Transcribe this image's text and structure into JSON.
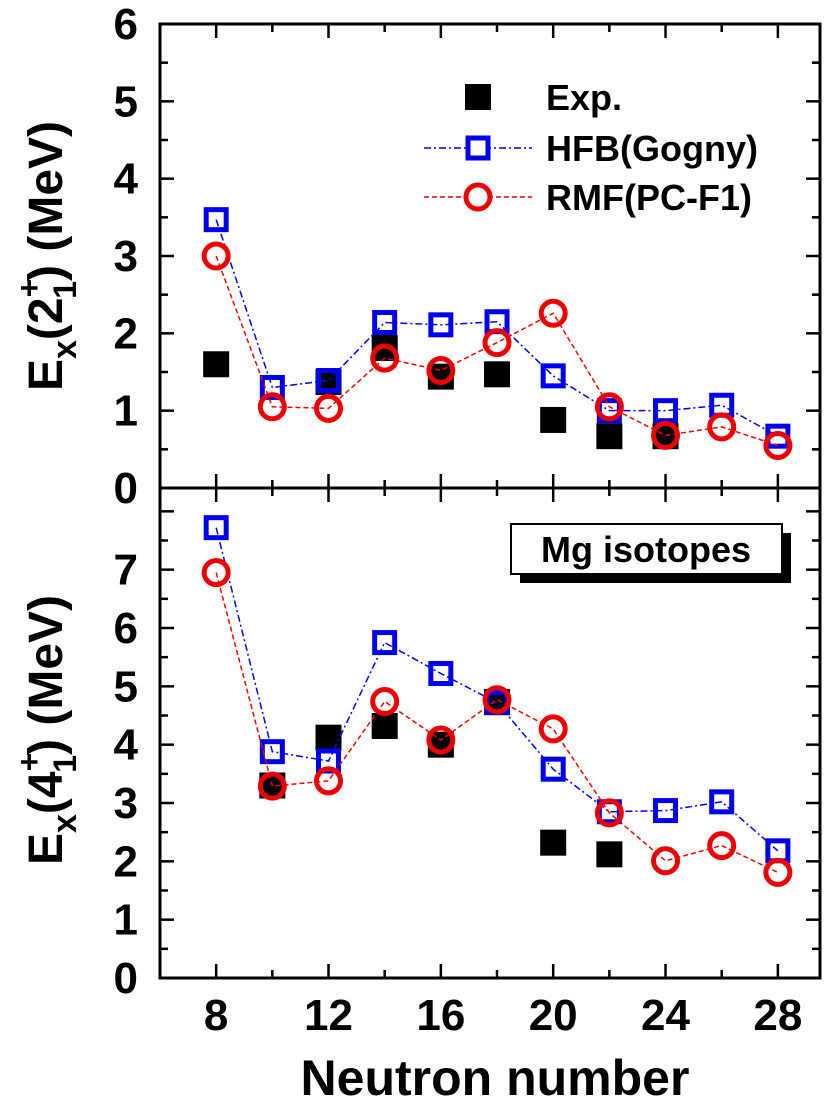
{
  "chart_data": [
    {
      "type": "scatter",
      "panel": "top",
      "ylabel_main": "E",
      "ylabel_sub": "x",
      "ylabel_state": "2",
      "ylabel_state_sup": "+",
      "ylabel_state_sub": "1",
      "ylabel_unit": "(MeV)",
      "ylim": [
        0,
        6
      ],
      "yticks": [
        "0",
        "1",
        "2",
        "3",
        "4",
        "5",
        "6"
      ],
      "xlim": [
        6,
        29.5
      ],
      "series": [
        {
          "name": "Exp.",
          "color": "#000000",
          "marker": "filled-square",
          "line": false,
          "x": [
            8,
            12,
            14,
            16,
            18,
            20,
            22,
            24
          ],
          "y": [
            1.6,
            1.37,
            1.81,
            1.44,
            1.47,
            0.88,
            0.67,
            0.67
          ]
        },
        {
          "name": "HFB(Gogny)",
          "color": "#0000ee",
          "marker": "open-square",
          "line": true,
          "x": [
            8,
            10,
            12,
            14,
            16,
            18,
            20,
            22,
            24,
            26,
            28
          ],
          "y": [
            3.47,
            1.3,
            1.39,
            2.14,
            2.11,
            2.15,
            1.45,
            1.0,
            1.0,
            1.07,
            0.67
          ]
        },
        {
          "name": "RMF(PC-F1)",
          "color": "#ee0000",
          "marker": "open-circle",
          "line": true,
          "x": [
            8,
            10,
            12,
            14,
            16,
            18,
            20,
            22,
            24,
            26,
            28
          ],
          "y": [
            3.0,
            1.05,
            1.03,
            1.68,
            1.52,
            1.88,
            2.26,
            1.05,
            0.68,
            0.79,
            0.55
          ]
        }
      ],
      "legend": {
        "placement": "top-right"
      }
    },
    {
      "type": "scatter",
      "panel": "bottom",
      "ylabel_main": "E",
      "ylabel_sub": "x",
      "ylabel_state": "4",
      "ylabel_state_sup": "+",
      "ylabel_state_sub": "1",
      "ylabel_unit": "(MeV)",
      "ylim": [
        0,
        8.4
      ],
      "yticks": [
        "0",
        "1",
        "2",
        "3",
        "4",
        "5",
        "6",
        "7"
      ],
      "xlim": [
        6,
        29.5
      ],
      "xticks": [
        "8",
        "12",
        "16",
        "20",
        "24",
        "28"
      ],
      "xlabel": "Neutron number",
      "annotation": "Mg isotopes",
      "series": [
        {
          "name": "Exp.",
          "color": "#000000",
          "marker": "filled-square",
          "line": false,
          "x": [
            10,
            12,
            14,
            16,
            18,
            20,
            22
          ],
          "y": [
            3.3,
            4.12,
            4.32,
            4.0,
            4.73,
            2.32,
            2.12
          ]
        },
        {
          "name": "HFB(Gogny)",
          "color": "#0000ee",
          "marker": "open-square",
          "line": true,
          "x": [
            8,
            10,
            12,
            14,
            16,
            18,
            20,
            22,
            24,
            26,
            28
          ],
          "y": [
            7.72,
            3.88,
            3.72,
            5.75,
            5.22,
            4.72,
            3.58,
            2.85,
            2.87,
            3.02,
            2.18
          ]
        },
        {
          "name": "RMF(PC-F1)",
          "color": "#ee0000",
          "marker": "open-circle",
          "line": true,
          "x": [
            8,
            10,
            12,
            14,
            16,
            18,
            20,
            22,
            24,
            26,
            28
          ],
          "y": [
            6.95,
            3.29,
            3.38,
            4.74,
            4.08,
            4.77,
            4.27,
            2.83,
            2.01,
            2.27,
            1.81
          ]
        }
      ]
    }
  ]
}
